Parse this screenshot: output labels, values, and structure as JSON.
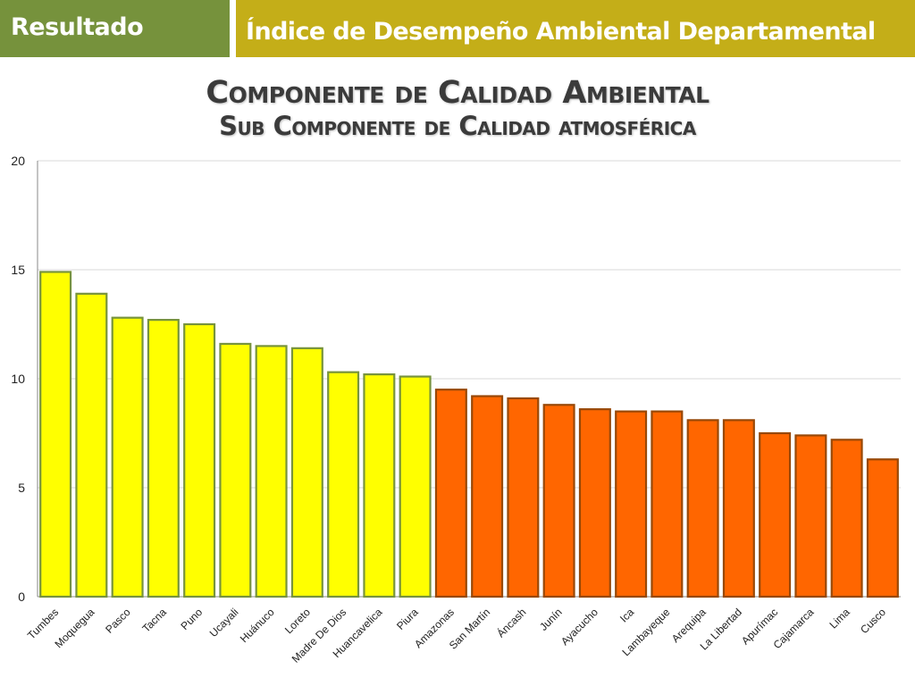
{
  "header": {
    "section_label": "Resultado",
    "section_color": "#76923c",
    "title": "Índice de Desempeño Ambiental Departamental",
    "title_color": "#c4ae18"
  },
  "chart_data": {
    "type": "bar",
    "title": "Componente de Calidad Ambiental",
    "subtitle": "Sub Componente de Calidad atmosférica",
    "xlabel": "",
    "ylabel": "",
    "ylim": [
      0,
      20
    ],
    "yticks": [
      0,
      5,
      10,
      15,
      20
    ],
    "grid": true,
    "legend": "none",
    "categories": [
      "Tumbes",
      "Moquegua",
      "Pasco",
      "Tacna",
      "Puno",
      "Ucayali",
      "Huánuco",
      "Loreto",
      "Madre De Dios",
      "Huancavelica",
      "Piura",
      "Amazonas",
      "San Martín",
      "Áncash",
      "Junín",
      "Ayacucho",
      "Ica",
      "Lambayeque",
      "Arequipa",
      "La Libertad",
      "Apurímac",
      "Cajamarca",
      "Lima",
      "Cusco"
    ],
    "values": [
      14.9,
      13.9,
      12.8,
      12.7,
      12.5,
      11.6,
      11.5,
      11.4,
      10.3,
      10.2,
      10.1,
      9.5,
      9.2,
      9.1,
      8.8,
      8.6,
      8.5,
      8.5,
      8.1,
      8.1,
      7.5,
      7.4,
      7.2,
      6.3
    ],
    "groups": [
      {
        "fill": "#ffff00",
        "stroke": "#77933c",
        "count": 11
      },
      {
        "fill": "#ff6600",
        "stroke": "#984807",
        "count": 13
      }
    ]
  }
}
